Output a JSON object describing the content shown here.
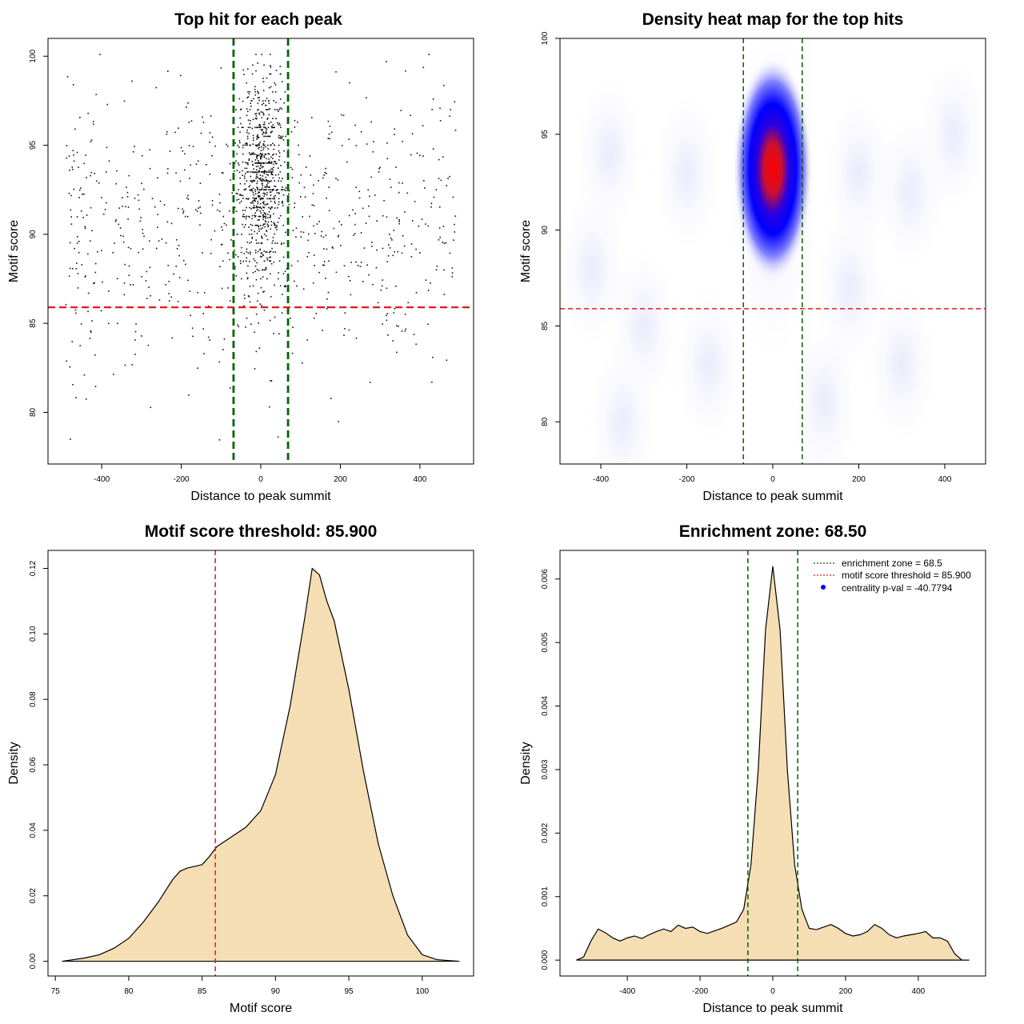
{
  "colors": {
    "green": "#006400",
    "red": "#e31a1c",
    "fill": "#f5deb3",
    "heat_low": "#ffffff",
    "heat_mid": "#0000ff",
    "heat_high": "#ff0000"
  },
  "chart_data": [
    {
      "id": "p1",
      "type": "scatter",
      "title": "Top hit for each peak",
      "xlabel": "Distance to peak summit",
      "ylabel": "Motif score",
      "xlim": [
        -535,
        535
      ],
      "ylim": [
        77.1,
        101.0
      ],
      "xticks": [
        "-400",
        "-200",
        "0",
        "200",
        "400"
      ],
      "yticks": [
        "80",
        "85",
        "90",
        "95",
        "100"
      ],
      "vlines": [
        -68.5,
        68.5
      ],
      "hline": 85.9,
      "point_count": 1500,
      "enrichment_zone": 68.5,
      "peak_score": 93
    },
    {
      "id": "p2",
      "type": "heatmap",
      "title": "Density heat map for the top hits",
      "xlabel": "Distance to peak summit",
      "ylabel": "Motif score",
      "xlim": [
        -495,
        495
      ],
      "ylim": [
        77.8,
        100.0
      ],
      "xticks": [
        "-400",
        "-200",
        "0",
        "200",
        "400"
      ],
      "yticks": [
        "80",
        "85",
        "90",
        "95",
        "100"
      ],
      "vlines": [
        -68.5,
        68.5
      ],
      "hline": 85.9,
      "peak": {
        "x": 0,
        "y": 93.2
      }
    },
    {
      "id": "p3",
      "type": "area",
      "title": "Motif score threshold: 85.900",
      "xlabel": "Motif score",
      "ylabel": "Density",
      "xlim": [
        74.5,
        103.5
      ],
      "ylim": [
        -0.0045,
        0.1255
      ],
      "xticks": [
        "75",
        "80",
        "85",
        "90",
        "95",
        "100"
      ],
      "yticks": [
        "0.00",
        "0.02",
        "0.04",
        "0.06",
        "0.08",
        "0.10",
        "0.12"
      ],
      "vline": 85.9,
      "x": [
        75.5,
        77,
        78,
        79,
        80,
        81,
        82,
        83,
        83.5,
        84,
        84.5,
        85,
        85.5,
        86,
        87,
        88,
        89,
        90,
        91,
        92,
        92.5,
        93,
        93.5,
        94,
        95,
        96,
        97,
        98,
        99,
        100,
        101,
        102.5
      ],
      "y": [
        0.0,
        0.001,
        0.002,
        0.004,
        0.007,
        0.012,
        0.018,
        0.025,
        0.0275,
        0.0285,
        0.029,
        0.0295,
        0.032,
        0.035,
        0.038,
        0.041,
        0.046,
        0.057,
        0.078,
        0.105,
        0.12,
        0.118,
        0.11,
        0.104,
        0.083,
        0.058,
        0.036,
        0.02,
        0.008,
        0.002,
        0.0005,
        0.0
      ]
    },
    {
      "id": "p4",
      "type": "area",
      "title": "Enrichment zone: 68.50",
      "xlabel": "Distance to peak summit",
      "ylabel": "Density",
      "xlim": [
        -585,
        585
      ],
      "ylim": [
        -0.00025,
        0.00645
      ],
      "xticks": [
        "-400",
        "-200",
        "0",
        "200",
        "400"
      ],
      "yticks": [
        "0.000",
        "0.001",
        "0.002",
        "0.003",
        "0.004",
        "0.005",
        "0.006"
      ],
      "vlines": [
        -68.5,
        68.5
      ],
      "x": [
        -540,
        -520,
        -500,
        -480,
        -460,
        -440,
        -420,
        -400,
        -380,
        -360,
        -340,
        -320,
        -300,
        -280,
        -260,
        -240,
        -220,
        -200,
        -180,
        -160,
        -140,
        -120,
        -100,
        -80,
        -60,
        -40,
        -20,
        0,
        20,
        40,
        60,
        80,
        100,
        120,
        140,
        160,
        180,
        200,
        220,
        240,
        260,
        280,
        300,
        320,
        340,
        360,
        380,
        400,
        420,
        440,
        460,
        480,
        500,
        520,
        540
      ],
      "y": [
        0.0,
        5e-05,
        0.0003,
        0.00049,
        0.00043,
        0.00035,
        0.0003,
        0.00035,
        0.00038,
        0.00034,
        0.0004,
        0.00045,
        0.00049,
        0.00045,
        0.00055,
        0.0005,
        0.00052,
        0.00045,
        0.00042,
        0.00046,
        0.0005,
        0.00055,
        0.0006,
        0.0008,
        0.0015,
        0.003,
        0.0052,
        0.0062,
        0.0052,
        0.003,
        0.0015,
        0.0008,
        0.0005,
        0.00048,
        0.00052,
        0.00056,
        0.0005,
        0.00042,
        0.00038,
        0.0004,
        0.00045,
        0.00056,
        0.0005,
        0.0004,
        0.00035,
        0.00038,
        0.0004,
        0.00042,
        0.00045,
        0.00035,
        0.00035,
        0.0003,
        0.0001,
        0.0,
        0.0
      ],
      "legend": {
        "placement": "top-right",
        "entries": [
          {
            "label": "enrichment zone = 68.5",
            "color": "#006400",
            "symbol": "dotted-line"
          },
          {
            "label": "motif score threshold = 85.900",
            "color": "#e31a1c",
            "symbol": "dotted-line"
          },
          {
            "label": "centrality p-val = -40.7794",
            "color": "#0000ff",
            "symbol": "point"
          }
        ]
      }
    }
  ]
}
